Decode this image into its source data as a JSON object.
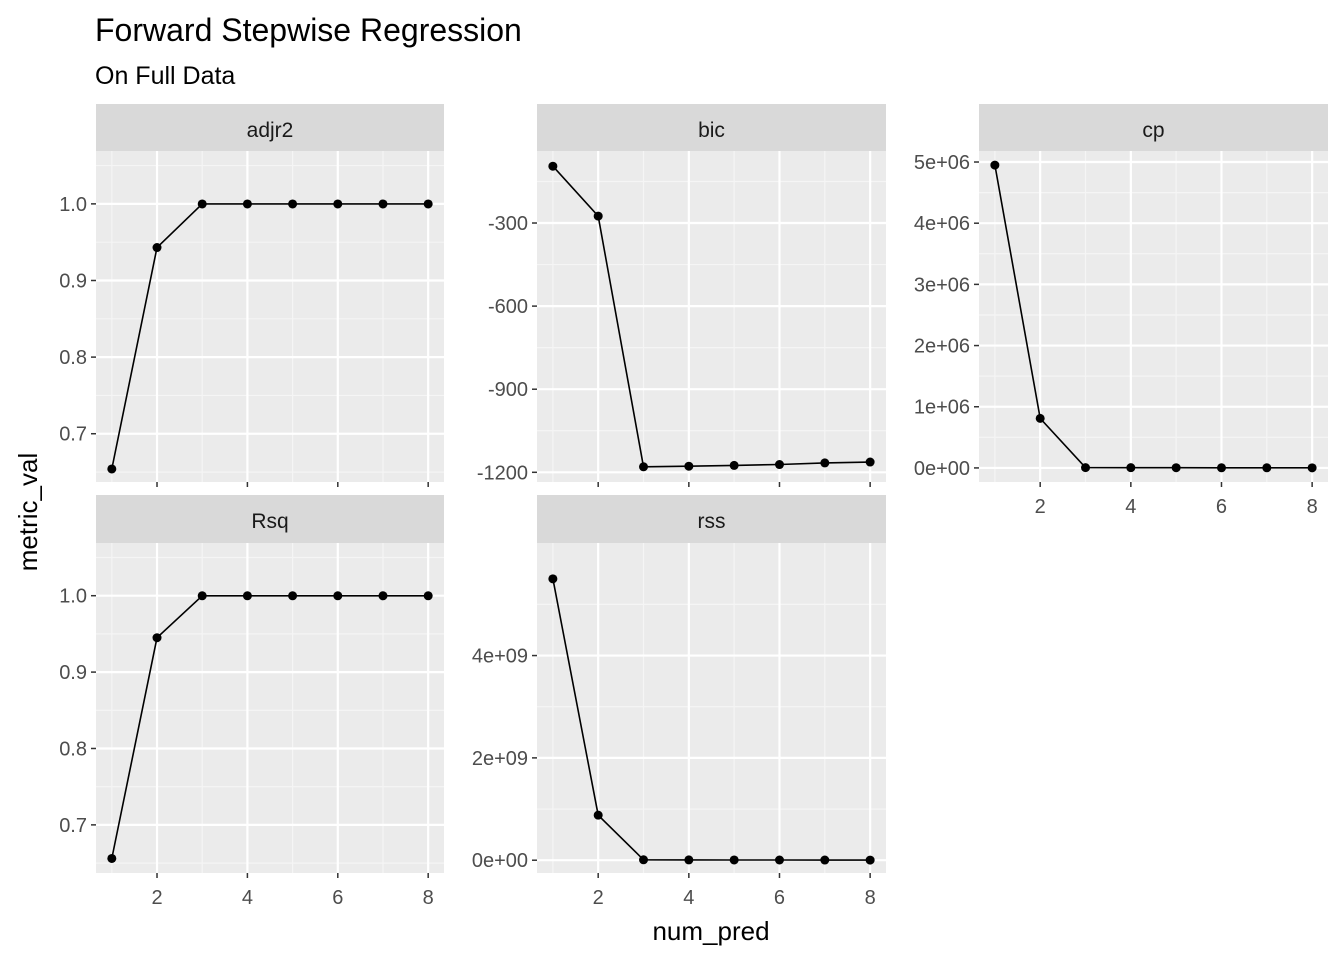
{
  "chart_data": {
    "type": "line",
    "title": "Forward Stepwise Regression",
    "subtitle": "On Full Data",
    "xlabel": "num_pred",
    "ylabel": "metric_val",
    "grid": true,
    "x": [
      1,
      2,
      3,
      4,
      5,
      6,
      7,
      8
    ],
    "x_ticks": [
      2,
      4,
      6,
      8
    ],
    "xlim": [
      0.65,
      8.35
    ],
    "panels": [
      {
        "name": "adjr2",
        "values": [
          0.654,
          0.943,
          0.9999,
          0.9999,
          0.9999,
          0.9999,
          0.9999,
          0.9999
        ],
        "ylim": [
          0.637,
          1.069
        ],
        "y_ticks": [
          0.7,
          0.8,
          0.9,
          1.0
        ],
        "y_tick_labels": [
          "0.7",
          "0.8",
          "0.9",
          "1.0"
        ]
      },
      {
        "name": "bic",
        "values": [
          -95,
          -275,
          -1180,
          -1178,
          -1175,
          -1172,
          -1166,
          -1163
        ],
        "ylim": [
          -1235,
          -40
        ],
        "y_ticks": [
          -300,
          -600,
          -900,
          -1200
        ],
        "y_tick_labels": [
          "-300",
          "-600",
          "-900",
          "-1200"
        ]
      },
      {
        "name": "cp",
        "values": [
          4950000,
          810000,
          5000,
          4000,
          3000,
          2500,
          2000,
          1500
        ],
        "ylim": [
          -230000,
          5180000
        ],
        "y_ticks": [
          0,
          1000000,
          2000000,
          3000000,
          4000000,
          5000000
        ],
        "y_tick_labels": [
          "0e+00",
          "1e+06",
          "2e+06",
          "3e+06",
          "4e+06",
          "5e+06"
        ]
      },
      {
        "name": "Rsq",
        "values": [
          0.656,
          0.945,
          0.9999,
          0.9999,
          0.9999,
          0.9999,
          0.9999,
          0.9999
        ],
        "ylim": [
          0.637,
          1.069
        ],
        "y_ticks": [
          0.7,
          0.8,
          0.9,
          1.0
        ],
        "y_tick_labels": [
          "0.7",
          "0.8",
          "0.9",
          "1.0"
        ]
      },
      {
        "name": "rss",
        "values": [
          5500000000,
          880000000,
          8000000,
          6000000,
          5000000,
          4000000,
          3000000,
          2000000
        ],
        "ylim": [
          -250000000,
          6200000000
        ],
        "y_ticks": [
          0,
          2000000000,
          4000000000
        ],
        "y_tick_labels": [
          "0e+00",
          "2e+09",
          "4e+09"
        ]
      }
    ]
  }
}
